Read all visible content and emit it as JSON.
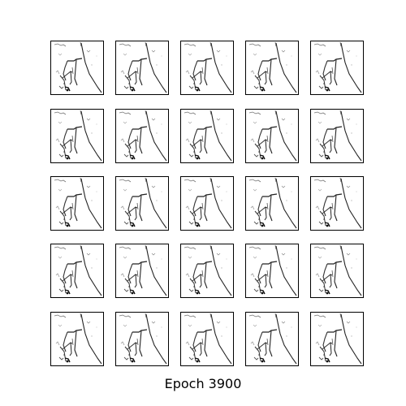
{
  "figure": {
    "caption": "Epoch 3900",
    "grid_rows": 5,
    "grid_cols": 5,
    "tile_count": 25,
    "tile_background": "#ffffff",
    "stroke_color": "#222222"
  }
}
